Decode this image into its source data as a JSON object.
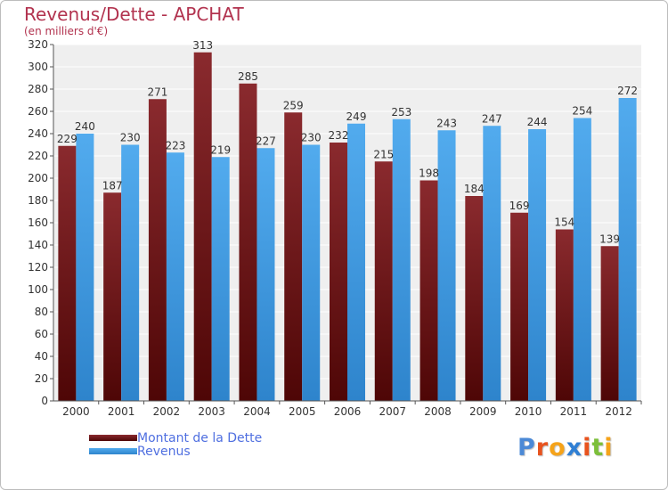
{
  "chart_data": {
    "type": "bar",
    "title": "Revenus/Dette - APCHAT",
    "subtitle": "(en milliers d'€)",
    "categories": [
      "2000",
      "2001",
      "2002",
      "2003",
      "2004",
      "2005",
      "2006",
      "2007",
      "2008",
      "2009",
      "2010",
      "2011",
      "2012"
    ],
    "series": [
      {
        "name": "Montant de la Dette",
        "color": "#7a1a1a",
        "values": [
          229,
          187,
          271,
          313,
          285,
          259,
          232,
          215,
          198,
          184,
          169,
          154,
          139
        ]
      },
      {
        "name": "Revenus",
        "color": "#3d9ae0",
        "values": [
          240,
          230,
          223,
          219,
          227,
          230,
          249,
          253,
          243,
          247,
          244,
          254,
          272
        ]
      }
    ],
    "ylim": [
      0,
      320
    ],
    "ystep": 20,
    "grid": true,
    "legend_position": "bottom-left"
  },
  "branding": {
    "logo_letters": [
      "P",
      "r",
      "o",
      "x",
      "i",
      "t",
      "i"
    ],
    "logo_colors": [
      "#4b89d6",
      "#e8531e",
      "#f5a31a",
      "#2f7fd4",
      "#e8531e",
      "#7cbf3a",
      "#f5a31a"
    ]
  }
}
